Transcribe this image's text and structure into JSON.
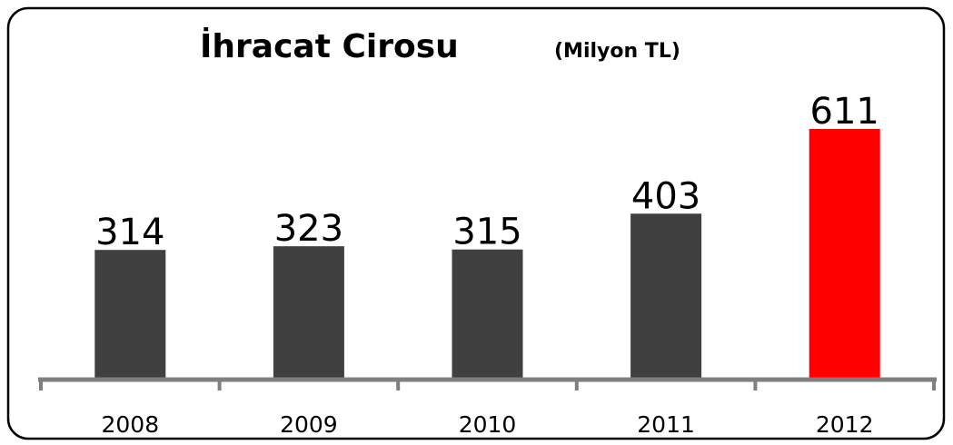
{
  "chart_data": {
    "type": "bar",
    "title": "İhracat Cirosu",
    "subtitle": "(Milyon TL)",
    "categories": [
      "2008",
      "2009",
      "2010",
      "2011",
      "2012"
    ],
    "values": [
      314,
      323,
      315,
      403,
      611
    ],
    "colors": [
      "#404040",
      "#404040",
      "#404040",
      "#404040",
      "#ff0000"
    ]
  }
}
